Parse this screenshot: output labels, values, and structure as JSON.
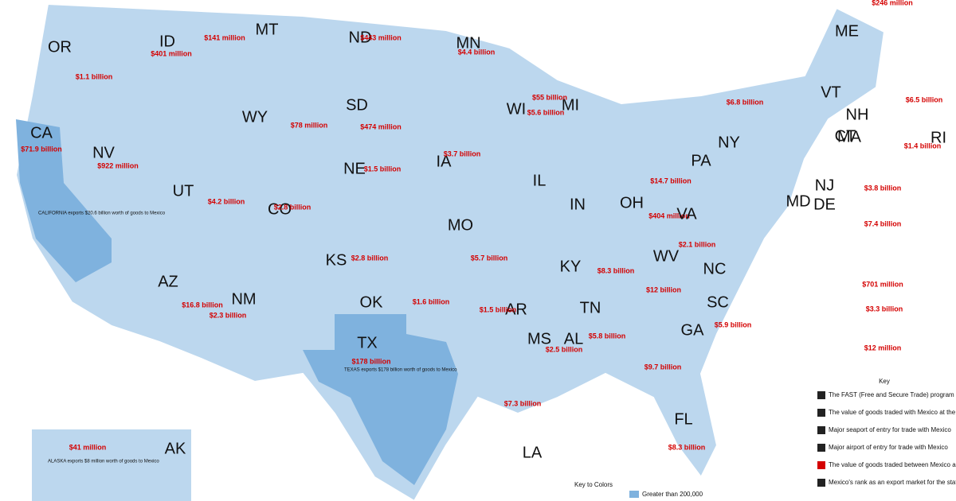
{
  "states": [
    {
      "abbr": "OR",
      "value": "$1.1 billion"
    },
    {
      "abbr": "ID",
      "value": "$401 million"
    },
    {
      "abbr": "MT",
      "value": "$141 million"
    },
    {
      "abbr": "ND",
      "value": "$443 million"
    },
    {
      "abbr": "MN",
      "value": "$4.4 billion"
    },
    {
      "abbr": "WI",
      "value": "$5.6 billion"
    },
    {
      "abbr": "MI",
      "value": "$55 billion"
    },
    {
      "abbr": "SD",
      "value": "$474 million"
    },
    {
      "abbr": "WY",
      "value": "$78 million"
    },
    {
      "abbr": "CA",
      "value": "$71.9 billion"
    },
    {
      "abbr": "NV",
      "value": "$922 million"
    },
    {
      "abbr": "NE",
      "value": "$1.5 billion"
    },
    {
      "abbr": "IA",
      "value": "$3.7 billion"
    },
    {
      "abbr": "IL"
    },
    {
      "abbr": "IN"
    },
    {
      "abbr": "OH",
      "value": "$14.7 billion"
    },
    {
      "abbr": "UT",
      "value": "$4.2 billion"
    },
    {
      "abbr": "CO",
      "value": "$2.8 billion"
    },
    {
      "abbr": "KS",
      "value": "$2.8 billion"
    },
    {
      "abbr": "MO",
      "value": "$5.7 billion"
    },
    {
      "abbr": "KY",
      "value": "$8.3 billion"
    },
    {
      "abbr": "WV",
      "value": "$404 million"
    },
    {
      "abbr": "VA",
      "value": "$2.1 billion"
    },
    {
      "abbr": "NC"
    },
    {
      "abbr": "TN",
      "value": "$12 billion"
    },
    {
      "abbr": "AZ",
      "value": "$16.8 billion"
    },
    {
      "abbr": "NM",
      "value": "$2.3 billion"
    },
    {
      "abbr": "OK",
      "value": "$1.6 billion"
    },
    {
      "abbr": "AR",
      "value": "$1.5 billion"
    },
    {
      "abbr": "MS",
      "value": "$2.5 billion"
    },
    {
      "abbr": "AL",
      "value": "$5.8 billion"
    },
    {
      "abbr": "GA",
      "value": "$9.7 billion"
    },
    {
      "abbr": "SC",
      "value": "$5.9 billion"
    },
    {
      "abbr": "LA",
      "value": "$7.3 billion"
    },
    {
      "abbr": "TX",
      "value": "$178 billion"
    },
    {
      "abbr": "FL",
      "value": "$8.3 billion"
    },
    {
      "abbr": "PA"
    },
    {
      "abbr": "NY",
      "value": "$6.8 billion"
    },
    {
      "abbr": "VT",
      "value": "$246 million"
    },
    {
      "abbr": "NH",
      "value": "$6.5 billion"
    },
    {
      "abbr": "ME"
    },
    {
      "abbr": "MA"
    },
    {
      "abbr": "CT",
      "value": "$3.8 billion"
    },
    {
      "abbr": "RI",
      "value": "$1.4 billion"
    },
    {
      "abbr": "NJ",
      "value": "$7.4 billion"
    },
    {
      "abbr": "DE",
      "value": "$701 million"
    },
    {
      "abbr": "MD",
      "value": "$3.3 billion"
    },
    {
      "abbr": "AK",
      "value": "$41 million"
    }
  ],
  "dc": {
    "value": "$12 million"
  },
  "notes": [
    "TEXAS exports $178 billion worth of goods to Mexico",
    "CALIFORNIA exports $20.6 billion worth of goods to Mexico",
    "ALASKA exports $8 million worth of goods to Mexico"
  ],
  "key": {
    "title": "Key",
    "items": [
      "The FAST (Free and Secure Trade) program ensures secure, safe, and efficient trade at the border for low-risk clients",
      "The value of goods traded with Mexico at the corresponding port of entry",
      "Major seaport of entry for trade with Mexico",
      "Major airport of entry for trade with Mexico",
      "The value of goods traded between Mexico and the State",
      "Mexico's rank as an export market for the state"
    ]
  },
  "color_key": {
    "title": "Key to Colors",
    "items": [
      "Greater than 200,000"
    ]
  }
}
